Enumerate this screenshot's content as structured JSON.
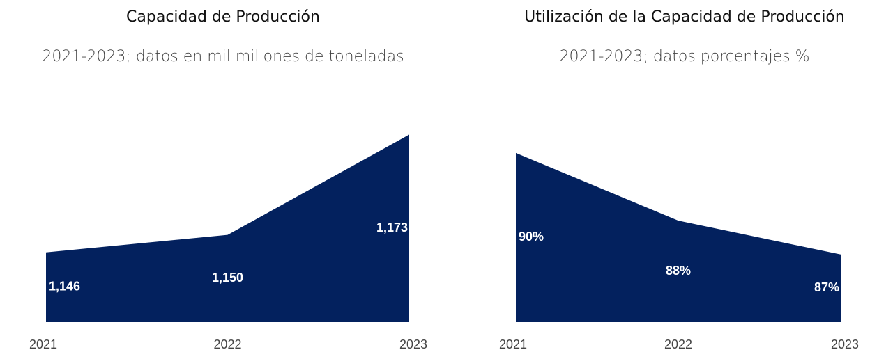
{
  "chart_data": [
    {
      "type": "area",
      "title": "Capacidad de Producción",
      "subtitle": "2021-2023; datos en mil millones de toneladas",
      "categories": [
        "2021",
        "2022",
        "2023"
      ],
      "values": [
        1146,
        1150,
        1173
      ],
      "value_labels": [
        "1,146",
        "1,150",
        "1,173"
      ],
      "color": "#03215e",
      "ylim": [
        1130,
        1175
      ]
    },
    {
      "type": "area",
      "title": "Utilización de la Capacidad de Producción",
      "subtitle": "2021-2023; datos porcentajes %",
      "categories": [
        "2021",
        "2022",
        "2023"
      ],
      "values": [
        90,
        88,
        87
      ],
      "value_labels": [
        "90%",
        "88%",
        "87%"
      ],
      "color": "#03215e",
      "ylim": [
        85,
        90.8
      ]
    }
  ]
}
